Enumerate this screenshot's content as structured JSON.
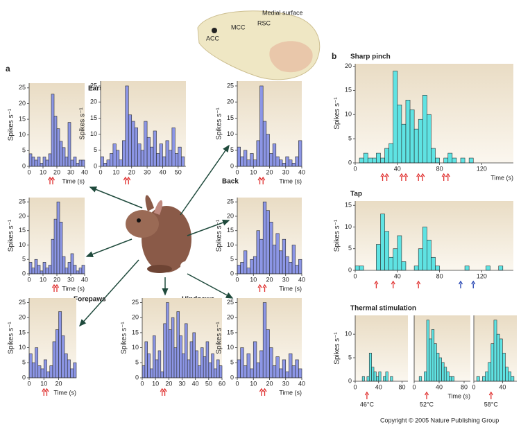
{
  "labels": {
    "panel_a": "a",
    "panel_b": "b",
    "ears": "Ears",
    "back": "Back",
    "forepaws": "Forepaws",
    "hindpaws": "Hindpaws",
    "brain_caption": "Medial surface",
    "mcc": "MCC",
    "rsc": "RSC",
    "acc": "ACC",
    "copyright": "Copyright © 2005 Nature Publishing Group"
  },
  "chart_data": [
    {
      "type": "histogram",
      "color": "#8c96e6",
      "ylabel": "Spikes s⁻¹",
      "xlabel": "Time (s)",
      "xlim": [
        0,
        40
      ],
      "ylim": [
        0,
        26.5
      ],
      "xticks": [
        0,
        10,
        20,
        30,
        40
      ],
      "yticks": [
        0,
        5,
        10,
        15,
        20,
        25
      ],
      "bins": [
        0,
        2,
        4,
        6,
        8,
        10,
        12,
        14,
        16,
        18,
        20,
        22,
        24,
        26,
        28,
        30,
        32,
        34,
        36,
        38,
        40
      ],
      "counts": [
        4,
        3,
        2,
        3,
        1,
        3,
        2,
        4,
        23,
        16,
        12,
        8,
        6,
        3,
        14,
        2,
        3,
        1,
        2,
        2
      ],
      "stimuli": [
        {
          "color": "#e0302f",
          "times": [
            15,
            17
          ]
        }
      ]
    },
    {
      "type": "histogram",
      "color": "#8c96e6",
      "ylabel": "Spikes s⁻¹",
      "xlim": [
        0,
        55
      ],
      "ylim": [
        0,
        26.5
      ],
      "xticks": [
        0,
        10,
        20,
        30,
        40,
        50
      ],
      "yticks": [
        0,
        5,
        10,
        15,
        20,
        25
      ],
      "bins": [
        0,
        2,
        4,
        6,
        8,
        10,
        12,
        14,
        16,
        18,
        20,
        22,
        24,
        26,
        28,
        30,
        32,
        34,
        36,
        38,
        40,
        42,
        44,
        46,
        48,
        50,
        52,
        54
      ],
      "counts": [
        3,
        1,
        2,
        4,
        7,
        5,
        2,
        8,
        25,
        16,
        14,
        12,
        7,
        5,
        14,
        9,
        6,
        11,
        4,
        7,
        3,
        8,
        5,
        12,
        4,
        6,
        3
      ],
      "stimuli": [
        {
          "color": "#e0302f",
          "times": [
            16,
            18
          ]
        }
      ]
    },
    {
      "type": "histogram",
      "color": "#8c96e6",
      "ylabel": "Spikes s⁻¹",
      "xlabel": "Time (s)",
      "xlim": [
        0,
        40
      ],
      "ylim": [
        0,
        26.5
      ],
      "xticks": [
        0,
        10,
        20,
        30,
        40
      ],
      "yticks": [
        0,
        5,
        10,
        15,
        20,
        25
      ],
      "bins": [
        0,
        2,
        4,
        6,
        8,
        10,
        12,
        14,
        16,
        18,
        20,
        22,
        24,
        26,
        28,
        30,
        32,
        34,
        36,
        38,
        40
      ],
      "counts": [
        6,
        3,
        5,
        2,
        4,
        2,
        8,
        25,
        14,
        10,
        4,
        7,
        3,
        2,
        1,
        3,
        2,
        1,
        3,
        8
      ],
      "stimuli": [
        {
          "color": "#e0302f",
          "times": [
            14,
            16
          ]
        }
      ]
    },
    {
      "type": "histogram",
      "color": "#8c96e6",
      "ylabel": "Spikes s⁻¹",
      "xlabel": "Time (s)",
      "xlim": [
        0,
        40
      ],
      "ylim": [
        0,
        26.5
      ],
      "xticks": [
        0,
        10,
        20,
        30,
        40
      ],
      "yticks": [
        0,
        5,
        10,
        15,
        20,
        25
      ],
      "bins": [
        0,
        2,
        4,
        6,
        8,
        10,
        12,
        14,
        16,
        18,
        20,
        22,
        24,
        26,
        28,
        30,
        32,
        34,
        36,
        38,
        40
      ],
      "counts": [
        4,
        2,
        5,
        3,
        1,
        4,
        2,
        3,
        12,
        19,
        25,
        18,
        6,
        2,
        4,
        7,
        3,
        1,
        2,
        3
      ],
      "stimuli": [
        {
          "color": "#e0302f",
          "times": [
            18,
            20
          ]
        }
      ]
    },
    {
      "type": "histogram",
      "color": "#8c96e6",
      "ylabel": "Spikes s⁻¹",
      "xlabel": "Time (s)",
      "xlim": [
        0,
        40
      ],
      "ylim": [
        0,
        26.5
      ],
      "xticks": [
        0,
        10,
        20,
        30,
        40
      ],
      "yticks": [
        0,
        5,
        10,
        15,
        20,
        25
      ],
      "bins": [
        0,
        2,
        4,
        6,
        8,
        10,
        12,
        14,
        16,
        18,
        20,
        22,
        24,
        26,
        28,
        30,
        32,
        34,
        36,
        38,
        40
      ],
      "counts": [
        3,
        4,
        8,
        2,
        5,
        6,
        15,
        12,
        25,
        22,
        18,
        10,
        14,
        8,
        12,
        6,
        4,
        10,
        3,
        5
      ],
      "stimuli": [
        {
          "color": "#e0302f",
          "times": [
            14,
            17
          ]
        }
      ]
    },
    {
      "type": "histogram",
      "color": "#8c96e6",
      "ylabel": "Spikes s⁻¹",
      "xlabel": "Time (s)",
      "xlim": [
        0,
        32
      ],
      "ylim": [
        0,
        26.5
      ],
      "xticks": [
        0,
        10,
        20
      ],
      "yticks": [
        0,
        5,
        10,
        15,
        20,
        25
      ],
      "bins": [
        0,
        2,
        4,
        6,
        8,
        10,
        12,
        14,
        16,
        18,
        20,
        22,
        24,
        26,
        28,
        30,
        32
      ],
      "counts": [
        8,
        5,
        10,
        4,
        3,
        6,
        2,
        4,
        12,
        16,
        22,
        14,
        8,
        6,
        3,
        5
      ],
      "stimuli": [
        {
          "color": "#e0302f",
          "times": [
            10,
            12
          ]
        }
      ]
    },
    {
      "type": "histogram",
      "color": "#8c96e6",
      "ylabel": "Spikes s⁻¹",
      "xlim": [
        0,
        60
      ],
      "ylim": [
        0,
        26.5
      ],
      "xticks": [
        0,
        10,
        20,
        30,
        40,
        50,
        60
      ],
      "yticks": [
        0,
        5,
        10,
        15,
        20,
        25
      ],
      "bins": [
        0,
        2,
        4,
        6,
        8,
        10,
        12,
        14,
        16,
        18,
        20,
        22,
        24,
        26,
        28,
        30,
        32,
        34,
        36,
        38,
        40,
        42,
        44,
        46,
        48,
        50,
        52,
        54,
        56,
        58,
        60
      ],
      "counts": [
        4,
        12,
        8,
        3,
        14,
        6,
        9,
        2,
        18,
        25,
        16,
        20,
        10,
        22,
        14,
        8,
        18,
        6,
        12,
        15,
        9,
        4,
        10,
        7,
        12,
        5,
        8,
        3,
        6,
        4
      ],
      "stimuli": [
        {
          "color": "#e0302f",
          "times": [
            15,
            17
          ]
        }
      ]
    },
    {
      "type": "histogram",
      "color": "#8c96e6",
      "ylabel": "Spikes s⁻¹",
      "xlabel": "Time (s)",
      "xlim": [
        0,
        40
      ],
      "ylim": [
        0,
        26.5
      ],
      "xticks": [
        0,
        10,
        20,
        30,
        40
      ],
      "yticks": [
        0,
        5,
        10,
        15,
        20,
        25
      ],
      "bins": [
        0,
        2,
        4,
        6,
        8,
        10,
        12,
        14,
        16,
        18,
        20,
        22,
        24,
        26,
        28,
        30,
        32,
        34,
        36,
        38,
        40
      ],
      "counts": [
        6,
        10,
        4,
        8,
        3,
        12,
        5,
        9,
        25,
        16,
        10,
        4,
        7,
        3,
        6,
        2,
        8,
        4,
        6,
        3
      ],
      "stimuli": [
        {
          "color": "#e0302f",
          "times": [
            15,
            17
          ]
        }
      ]
    },
    {
      "type": "histogram",
      "title": "Sharp pinch",
      "color": "#5fe3e3",
      "ylabel": "Spikes s⁻¹",
      "xlabel": "Time (s)",
      "xlim": [
        0,
        150
      ],
      "ylim": [
        0,
        20.5
      ],
      "xticks": [
        0,
        40,
        80,
        120
      ],
      "yticks": [
        0,
        5,
        10,
        15,
        20
      ],
      "bins": [
        0,
        4,
        8,
        12,
        16,
        20,
        24,
        28,
        32,
        36,
        40,
        44,
        48,
        52,
        56,
        60,
        64,
        68,
        72,
        76,
        80,
        84,
        88,
        92,
        96,
        100,
        104,
        108,
        112,
        116,
        120,
        124,
        128,
        132,
        136,
        140,
        144
      ],
      "counts": [
        0,
        1,
        2,
        1,
        1,
        2,
        1,
        3,
        4,
        19,
        12,
        8,
        13,
        11,
        7,
        9,
        14,
        10,
        3,
        1,
        0,
        1,
        2,
        1,
        0,
        1,
        0,
        1,
        0,
        0,
        0,
        0,
        0,
        0,
        0,
        0
      ],
      "stimuli": [
        {
          "color": "#e0302f",
          "times": [
            26,
            30,
            44,
            48,
            60,
            64,
            84,
            88
          ]
        }
      ]
    },
    {
      "type": "histogram",
      "title": "Tap",
      "color": "#5fe3e3",
      "ylabel": "Spikes s⁻¹",
      "xlim": [
        0,
        150
      ],
      "ylim": [
        0,
        16
      ],
      "xticks": [
        0,
        40,
        80,
        120
      ],
      "yticks": [
        0,
        5,
        10,
        15
      ],
      "bins": [
        0,
        4,
        8,
        12,
        16,
        20,
        24,
        28,
        32,
        36,
        40,
        44,
        48,
        52,
        56,
        60,
        64,
        68,
        72,
        76,
        80,
        84,
        88,
        92,
        96,
        100,
        104,
        108,
        112,
        116,
        120,
        124,
        128,
        132,
        136,
        140,
        144
      ],
      "counts": [
        1,
        1,
        0,
        0,
        0,
        6,
        13,
        9,
        3,
        5,
        8,
        2,
        0,
        0,
        1,
        5,
        10,
        7,
        3,
        1,
        0,
        0,
        0,
        0,
        0,
        0,
        1,
        0,
        0,
        0,
        0,
        1,
        0,
        0,
        1,
        0
      ],
      "stimuli": [
        {
          "color": "#e0302f",
          "times": [
            20,
            36,
            60
          ]
        },
        {
          "color": "#1f3fb0",
          "times": [
            100,
            112
          ]
        }
      ]
    },
    {
      "type": "histogram",
      "title": "Thermal stimulation",
      "color": "#5fe3e3",
      "ylabel": "Spikes s⁻¹",
      "xlim": [
        0,
        90
      ],
      "ylim": [
        0,
        14
      ],
      "xticks": [
        0,
        40,
        80
      ],
      "yticks": [
        0,
        5,
        10
      ],
      "bins": [
        0,
        4,
        8,
        12,
        16,
        20,
        24,
        28,
        32,
        36,
        40,
        44,
        48,
        52,
        56,
        60,
        64,
        68,
        72,
        76,
        80,
        84,
        88
      ],
      "counts": [
        0,
        0,
        0,
        1,
        0,
        1,
        6,
        3,
        2,
        1,
        2,
        0,
        1,
        2,
        0,
        1,
        0,
        0,
        0,
        0,
        0,
        0
      ],
      "stimuli": [
        {
          "color": "#e0302f",
          "times": [
            20
          ],
          "label": "46°C"
        }
      ]
    },
    {
      "type": "histogram",
      "color": "#5fe3e3",
      "xlabel": "Time (s)",
      "xlim": [
        0,
        90
      ],
      "ylim": [
        0,
        14
      ],
      "xticks": [
        0,
        40,
        80
      ],
      "bins": [
        0,
        4,
        8,
        12,
        16,
        20,
        24,
        28,
        32,
        36,
        40,
        44,
        48,
        52,
        56,
        60,
        64,
        68,
        72,
        76,
        80,
        84,
        88
      ],
      "counts": [
        0,
        0,
        1,
        0,
        2,
        13,
        9,
        11,
        8,
        6,
        5,
        4,
        3,
        2,
        1,
        1,
        0,
        0,
        0,
        0,
        0,
        0
      ],
      "stimuli": [
        {
          "color": "#e0302f",
          "times": [
            20
          ],
          "label": "52°C"
        }
      ]
    },
    {
      "type": "histogram",
      "color": "#5fe3e3",
      "xlim": [
        0,
        60
      ],
      "ylim": [
        0,
        14
      ],
      "xticks": [
        0,
        40
      ],
      "bins": [
        0,
        4,
        8,
        12,
        16,
        20,
        24,
        28,
        32,
        36,
        40,
        44,
        48,
        52,
        56,
        60
      ],
      "counts": [
        0,
        1,
        0,
        1,
        2,
        4,
        8,
        13,
        10,
        9,
        6,
        3,
        2,
        1,
        0
      ],
      "stimuli": [
        {
          "color": "#e0302f",
          "times": [
            24
          ],
          "label": "58°C"
        }
      ]
    }
  ]
}
